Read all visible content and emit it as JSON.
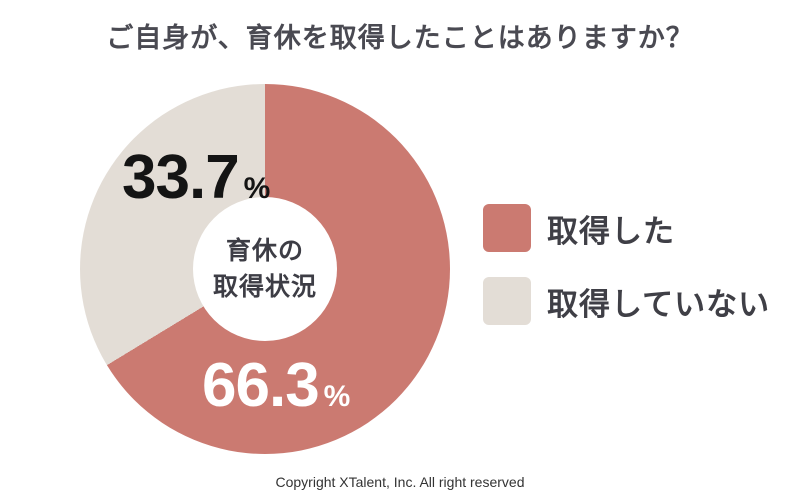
{
  "title": "ご自身が、育休を取得したことはありますか？",
  "chart_data": {
    "type": "pie",
    "subtype": "donut",
    "title": "育休の取得状況",
    "center_label_lines": [
      "育休の",
      "取得状況"
    ],
    "unit": "%",
    "start_angle_deg": 0,
    "direction": "clockwise",
    "legend_position": "right",
    "series": [
      {
        "name": "取得した",
        "value": 66.3,
        "color": "#cb7a71",
        "label_color": "#ffffff"
      },
      {
        "name": "取得していない",
        "value": 33.7,
        "color": "#e3ddd6",
        "label_color": "#141414"
      }
    ]
  },
  "footer": {
    "copyright": "Copyright XTalent, Inc. All right reserved"
  }
}
